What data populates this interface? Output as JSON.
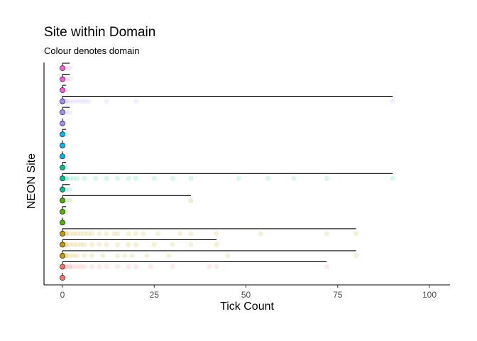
{
  "chart_data": {
    "type": "scatter",
    "title": "Site within Domain",
    "subtitle": "Colour denotes domain",
    "xlabel": "Tick Count",
    "ylabel": "NEON Site",
    "xlim": [
      -5,
      105
    ],
    "xticks": [
      0,
      25,
      50,
      75,
      100
    ],
    "ytick_labels_shown": false,
    "grid": false,
    "legend": "none",
    "point_alpha": 0.15,
    "site_rows": [
      {
        "color": "#F8766D",
        "max": 0,
        "values": [
          0
        ]
      },
      {
        "color": "#F8766D",
        "max": 72,
        "values": [
          0,
          0,
          0,
          1,
          1,
          2,
          2,
          3,
          4,
          5,
          6,
          8,
          10,
          12,
          15,
          18,
          20,
          24,
          30,
          40,
          42,
          72
        ]
      },
      {
        "color": "#C49A00",
        "max": 80,
        "values": [
          0,
          0,
          0,
          1,
          1,
          2,
          3,
          4,
          6,
          8,
          11,
          15,
          17,
          19,
          23,
          29,
          45,
          80
        ]
      },
      {
        "color": "#C49A00",
        "max": 42,
        "values": [
          0,
          0,
          0,
          1,
          1,
          2,
          3,
          4,
          5,
          6,
          8,
          10,
          12,
          15,
          18,
          20,
          25,
          30,
          35,
          42
        ]
      },
      {
        "color": "#C49A00",
        "max": 80,
        "values": [
          0,
          0,
          0,
          1,
          1,
          2,
          3,
          4,
          5,
          6,
          7,
          8,
          10,
          12,
          14,
          15,
          18,
          20,
          22,
          26,
          32,
          35,
          42,
          54,
          72,
          80
        ]
      },
      {
        "color": "#53B400",
        "max": 0,
        "values": [
          0
        ]
      },
      {
        "color": "#53B400",
        "max": 1,
        "values": [
          0,
          1
        ]
      },
      {
        "color": "#53B400",
        "max": 35,
        "values": [
          0,
          0,
          1,
          2,
          35
        ]
      },
      {
        "color": "#00C094",
        "max": 2,
        "values": [
          0,
          1,
          2
        ]
      },
      {
        "color": "#00C094",
        "max": 90,
        "values": [
          0,
          0,
          0,
          1,
          1,
          2,
          3,
          4,
          6,
          9,
          12,
          15,
          18,
          20,
          25,
          30,
          35,
          48,
          56,
          63,
          72,
          90
        ]
      },
      {
        "color": "#00C094",
        "max": 1,
        "values": [
          0,
          1
        ]
      },
      {
        "color": "#00B6EB",
        "max": 0,
        "values": [
          0
        ]
      },
      {
        "color": "#00B6EB",
        "max": 0,
        "values": [
          0
        ]
      },
      {
        "color": "#00B6EB",
        "max": 1,
        "values": [
          0,
          1
        ]
      },
      {
        "color": "#A58AFF",
        "max": 0,
        "values": [
          0
        ]
      },
      {
        "color": "#A58AFF",
        "max": 2,
        "values": [
          0,
          1,
          2
        ]
      },
      {
        "color": "#A58AFF",
        "max": 90,
        "values": [
          0,
          0,
          0,
          1,
          1,
          2,
          3,
          4,
          5,
          6,
          7,
          12,
          20,
          90
        ]
      },
      {
        "color": "#FB61D7",
        "max": 1,
        "values": [
          0,
          1
        ]
      },
      {
        "color": "#FB61D7",
        "max": 2,
        "values": [
          0,
          1,
          2
        ]
      },
      {
        "color": "#FB61D7",
        "max": 2,
        "values": [
          0,
          1,
          2
        ]
      }
    ]
  }
}
